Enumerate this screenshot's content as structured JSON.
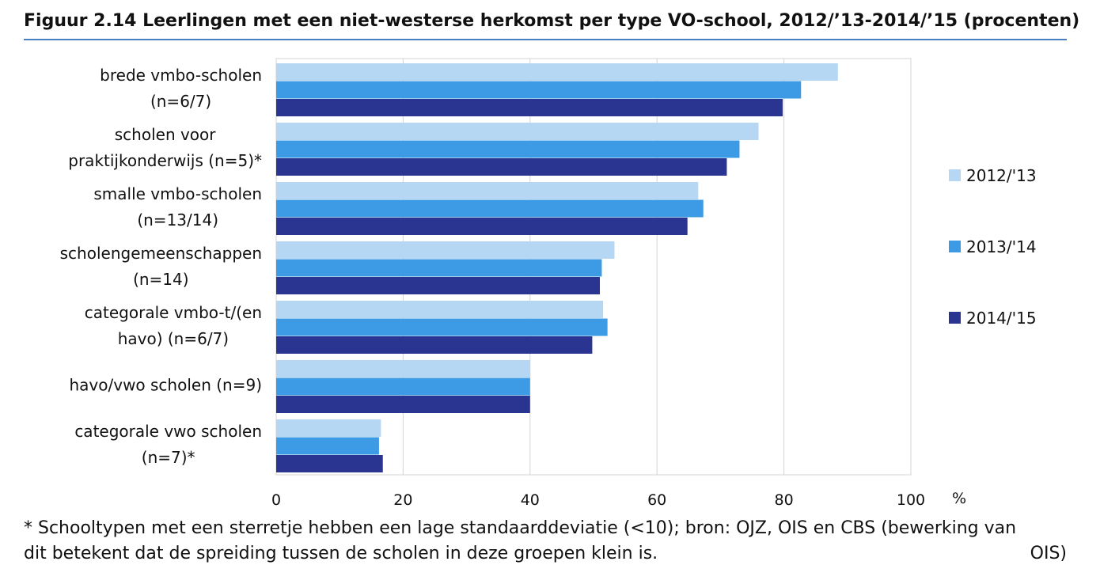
{
  "title": "Figuur 2.14 Leerlingen met een niet-westerse herkomst per type VO-school, 2012/’13-2014/’15 (procenten)",
  "footnote": {
    "line1": "* Schooltypen met een sterretje hebben een lage standaarddeviatie (<10); bron: OJZ, OIS en CBS (bewerking van",
    "line2_left": "dit betekent dat de spreiding tussen de scholen in deze groepen klein is.",
    "line2_right": "OIS)"
  },
  "colors": {
    "2012": "#b6d7f4",
    "2013": "#3d9be6",
    "2014": "#2a3592",
    "grid": "#d4d4d4",
    "frame": "#d4d4d4"
  },
  "chart_data": {
    "type": "bar",
    "orientation": "horizontal",
    "categories": [
      [
        "brede vmbo-scholen",
        "(n=6/7)"
      ],
      [
        "scholen voor",
        "praktijkonderwijs (n=5)*"
      ],
      [
        "smalle vmbo-scholen",
        "(n=13/14)"
      ],
      [
        "scholengemeenschappen",
        "(n=14)"
      ],
      [
        "categorale vmbo-t/(en",
        "havo) (n=6/7)"
      ],
      [
        "havo/vwo scholen (n=9)"
      ],
      [
        "categorale vwo scholen",
        "(n=7)*"
      ]
    ],
    "series": [
      {
        "name": "2012/'13",
        "color": "#b6d7f4",
        "values": [
          88.5,
          76,
          66.5,
          53.3,
          51.5,
          40,
          16.5
        ]
      },
      {
        "name": "2013/'14",
        "color": "#3d9be6",
        "values": [
          82.7,
          73,
          67.3,
          51.3,
          52.2,
          40,
          16.2
        ]
      },
      {
        "name": "2014/'15",
        "color": "#2a3592",
        "values": [
          79.8,
          71,
          64.8,
          51,
          49.8,
          40,
          16.8
        ]
      }
    ],
    "xlim": [
      0,
      100
    ],
    "xticks": [
      0,
      20,
      40,
      60,
      80,
      100
    ],
    "xunit": "%",
    "grid": true,
    "legend_position": "right"
  }
}
